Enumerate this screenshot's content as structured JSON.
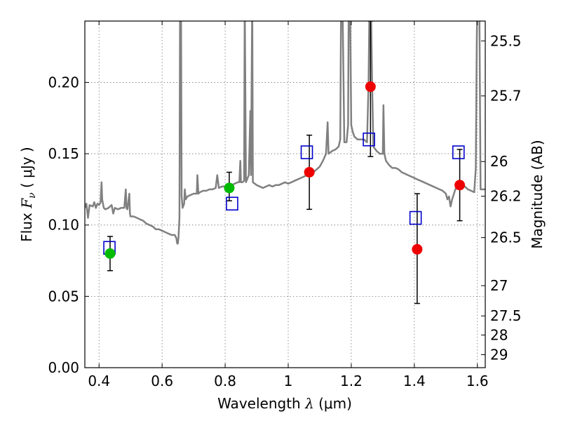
{
  "chart_data": {
    "type": "scatter",
    "title": "",
    "xlabel_prefix": "Wavelength  ",
    "xlabel_symbol": "λ",
    "xlabel_unit": " (μm)",
    "ylabel_prefix": "Flux  ",
    "ylabel_symbol": "F",
    "ylabel_subscript": "ν",
    "ylabel_unit": "  ( μJy )",
    "y2label": "Magnitude (AB)",
    "xlim": [
      0.355,
      1.625
    ],
    "ylim": [
      0.0,
      0.243
    ],
    "grid": true,
    "x_ticks": [
      0.4,
      0.6,
      0.8,
      1.0,
      1.2,
      1.4,
      1.6
    ],
    "x_tick_labels": [
      "0.4",
      "0.6",
      "0.8",
      "1",
      "1.2",
      "1.4",
      "1.6"
    ],
    "y_ticks": [
      0.0,
      0.05,
      0.1,
      0.15,
      0.2
    ],
    "y_tick_labels": [
      "0.00",
      "0.05",
      "0.10",
      "0.15",
      "0.20"
    ],
    "mag_ticks": [
      {
        "label": "25.5",
        "flux": 0.2291
      },
      {
        "label": "25.7",
        "flux": 0.1905
      },
      {
        "label": "26",
        "flux": 0.1445
      },
      {
        "label": "26.2",
        "flux": 0.1202
      },
      {
        "label": "26.5",
        "flux": 0.0912
      },
      {
        "label": "27",
        "flux": 0.0575
      },
      {
        "label": "27.5",
        "flux": 0.0363
      },
      {
        "label": "28",
        "flux": 0.0229
      },
      {
        "label": "29",
        "flux": 0.0091
      }
    ],
    "colors": {
      "model": "#808080",
      "green": "#00bb00",
      "red": "#ee0000",
      "blue": "#0000cc",
      "grid": "#777777"
    },
    "model_spectrum": [
      [
        0.355,
        0.112
      ],
      [
        0.36,
        0.115
      ],
      [
        0.365,
        0.105
      ],
      [
        0.37,
        0.114
      ],
      [
        0.38,
        0.113
      ],
      [
        0.385,
        0.116
      ],
      [
        0.39,
        0.112
      ],
      [
        0.395,
        0.115
      ],
      [
        0.4,
        0.114
      ],
      [
        0.405,
        0.116
      ],
      [
        0.408,
        0.13
      ],
      [
        0.41,
        0.118
      ],
      [
        0.415,
        0.112
      ],
      [
        0.42,
        0.111
      ],
      [
        0.43,
        0.112
      ],
      [
        0.44,
        0.114
      ],
      [
        0.445,
        0.108
      ],
      [
        0.45,
        0.112
      ],
      [
        0.46,
        0.111
      ],
      [
        0.47,
        0.112
      ],
      [
        0.48,
        0.112
      ],
      [
        0.485,
        0.125
      ],
      [
        0.487,
        0.112
      ],
      [
        0.49,
        0.111
      ],
      [
        0.496,
        0.122
      ],
      [
        0.498,
        0.108
      ],
      [
        0.5,
        0.106
      ],
      [
        0.51,
        0.106
      ],
      [
        0.52,
        0.105
      ],
      [
        0.53,
        0.104
      ],
      [
        0.54,
        0.103
      ],
      [
        0.55,
        0.101
      ],
      [
        0.56,
        0.1
      ],
      [
        0.57,
        0.099
      ],
      [
        0.58,
        0.097
      ],
      [
        0.59,
        0.097
      ],
      [
        0.6,
        0.096
      ],
      [
        0.61,
        0.095
      ],
      [
        0.62,
        0.094
      ],
      [
        0.63,
        0.093
      ],
      [
        0.64,
        0.093
      ],
      [
        0.645,
        0.091
      ],
      [
        0.648,
        0.087
      ],
      [
        0.65,
        0.087
      ],
      [
        0.652,
        0.091
      ],
      [
        0.655,
        0.105
      ],
      [
        0.657,
        0.26
      ],
      [
        0.66,
        0.26
      ],
      [
        0.662,
        0.12
      ],
      [
        0.665,
        0.112
      ],
      [
        0.67,
        0.115
      ],
      [
        0.672,
        0.125
      ],
      [
        0.675,
        0.118
      ],
      [
        0.68,
        0.12
      ],
      [
        0.69,
        0.121
      ],
      [
        0.7,
        0.122
      ],
      [
        0.71,
        0.122
      ],
      [
        0.712,
        0.135
      ],
      [
        0.715,
        0.122
      ],
      [
        0.72,
        0.123
      ],
      [
        0.73,
        0.124
      ],
      [
        0.74,
        0.124
      ],
      [
        0.75,
        0.125
      ],
      [
        0.76,
        0.125
      ],
      [
        0.77,
        0.126
      ],
      [
        0.775,
        0.135
      ],
      [
        0.78,
        0.126
      ],
      [
        0.79,
        0.127
      ],
      [
        0.8,
        0.127
      ],
      [
        0.81,
        0.128
      ],
      [
        0.82,
        0.128
      ],
      [
        0.83,
        0.129
      ],
      [
        0.84,
        0.13
      ],
      [
        0.845,
        0.13
      ],
      [
        0.848,
        0.145
      ],
      [
        0.85,
        0.13
      ],
      [
        0.855,
        0.13
      ],
      [
        0.86,
        0.131
      ],
      [
        0.862,
        0.26
      ],
      [
        0.866,
        0.13
      ],
      [
        0.875,
        0.135
      ],
      [
        0.88,
        0.18
      ],
      [
        0.882,
        0.135
      ],
      [
        0.886,
        0.26
      ],
      [
        0.888,
        0.13
      ],
      [
        0.9,
        0.128
      ],
      [
        0.91,
        0.127
      ],
      [
        0.92,
        0.126
      ],
      [
        0.93,
        0.127
      ],
      [
        0.94,
        0.128
      ],
      [
        0.95,
        0.127
      ],
      [
        0.96,
        0.128
      ],
      [
        0.97,
        0.128
      ],
      [
        0.98,
        0.129
      ],
      [
        0.99,
        0.13
      ],
      [
        1.0,
        0.129
      ],
      [
        1.01,
        0.13
      ],
      [
        1.02,
        0.131
      ],
      [
        1.03,
        0.132
      ],
      [
        1.04,
        0.133
      ],
      [
        1.05,
        0.134
      ],
      [
        1.06,
        0.135
      ],
      [
        1.07,
        0.136
      ],
      [
        1.08,
        0.137
      ],
      [
        1.085,
        0.138
      ],
      [
        1.09,
        0.139
      ],
      [
        1.1,
        0.141
      ],
      [
        1.11,
        0.145
      ],
      [
        1.12,
        0.15
      ],
      [
        1.125,
        0.172
      ],
      [
        1.128,
        0.15
      ],
      [
        1.14,
        0.152
      ],
      [
        1.15,
        0.153
      ],
      [
        1.16,
        0.155
      ],
      [
        1.165,
        0.16
      ],
      [
        1.168,
        0.26
      ],
      [
        1.172,
        0.26
      ],
      [
        1.178,
        0.158
      ],
      [
        1.185,
        0.158
      ],
      [
        1.19,
        0.17
      ],
      [
        1.192,
        0.26
      ],
      [
        1.196,
        0.26
      ],
      [
        1.2,
        0.17
      ],
      [
        1.205,
        0.165
      ],
      [
        1.21,
        0.162
      ],
      [
        1.22,
        0.16
      ],
      [
        1.23,
        0.16
      ],
      [
        1.24,
        0.16
      ],
      [
        1.25,
        0.158
      ],
      [
        1.255,
        0.2
      ],
      [
        1.258,
        0.26
      ],
      [
        1.262,
        0.26
      ],
      [
        1.266,
        0.2
      ],
      [
        1.27,
        0.155
      ],
      [
        1.28,
        0.152
      ],
      [
        1.29,
        0.15
      ],
      [
        1.3,
        0.15
      ],
      [
        1.302,
        0.184
      ],
      [
        1.305,
        0.15
      ],
      [
        1.31,
        0.145
      ],
      [
        1.32,
        0.142
      ],
      [
        1.33,
        0.14
      ],
      [
        1.34,
        0.14
      ],
      [
        1.35,
        0.139
      ],
      [
        1.36,
        0.137
      ],
      [
        1.37,
        0.136
      ],
      [
        1.38,
        0.135
      ],
      [
        1.39,
        0.134
      ],
      [
        1.4,
        0.133
      ],
      [
        1.41,
        0.132
      ],
      [
        1.42,
        0.131
      ],
      [
        1.43,
        0.13
      ],
      [
        1.44,
        0.129
      ],
      [
        1.45,
        0.128
      ],
      [
        1.46,
        0.127
      ],
      [
        1.47,
        0.126
      ],
      [
        1.48,
        0.125
      ],
      [
        1.49,
        0.124
      ],
      [
        1.5,
        0.122
      ],
      [
        1.505,
        0.118
      ],
      [
        1.51,
        0.12
      ],
      [
        1.515,
        0.113
      ],
      [
        1.52,
        0.118
      ],
      [
        1.53,
        0.125
      ],
      [
        1.54,
        0.128
      ],
      [
        1.55,
        0.128
      ],
      [
        1.56,
        0.127
      ],
      [
        1.57,
        0.125
      ],
      [
        1.58,
        0.124
      ],
      [
        1.59,
        0.123
      ],
      [
        1.595,
        0.14
      ],
      [
        1.598,
        0.23
      ],
      [
        1.6,
        0.26
      ],
      [
        1.606,
        0.26
      ],
      [
        1.61,
        0.125
      ],
      [
        1.625,
        0.125
      ]
    ],
    "measurements": [
      {
        "x": 0.435,
        "y": 0.08,
        "yerr_low": 0.068,
        "yerr_high": 0.092,
        "color": "green"
      },
      {
        "x": 0.813,
        "y": 0.126,
        "yerr_low": 0.117,
        "yerr_high": 0.137,
        "color": "green"
      },
      {
        "x": 1.067,
        "y": 0.137,
        "yerr_low": 0.111,
        "yerr_high": 0.163,
        "color": "red"
      },
      {
        "x": 1.261,
        "y": 0.197,
        "yerr_low": 0.148,
        "yerr_high": 0.243,
        "color": "red"
      },
      {
        "x": 1.409,
        "y": 0.083,
        "yerr_low": 0.045,
        "yerr_high": 0.122,
        "color": "red"
      },
      {
        "x": 1.544,
        "y": 0.128,
        "yerr_low": 0.103,
        "yerr_high": 0.153,
        "color": "red"
      }
    ],
    "model_photometry": [
      {
        "x": 0.433,
        "y": 0.084
      },
      {
        "x": 0.822,
        "y": 0.115
      },
      {
        "x": 1.059,
        "y": 0.151
      },
      {
        "x": 1.256,
        "y": 0.16
      },
      {
        "x": 1.404,
        "y": 0.105
      },
      {
        "x": 1.54,
        "y": 0.151
      }
    ]
  }
}
